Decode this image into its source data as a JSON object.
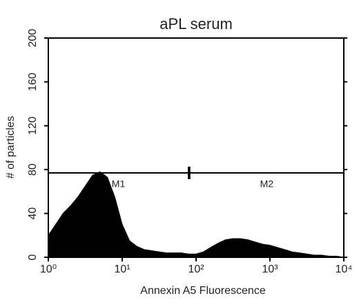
{
  "chart_data": {
    "type": "area",
    "title": "aPL serum",
    "x_label": "Annexin A5 Fluorescence",
    "y_label": "# of particles",
    "x": [
      1,
      1.26,
      1.58,
      2,
      2.51,
      3.16,
      3.98,
      5.01,
      6.31,
      7.94,
      10,
      12.6,
      15.8,
      20,
      25.1,
      31.6,
      39.8,
      50.1,
      63.1,
      79.4,
      100,
      126,
      158,
      200,
      251,
      316,
      398,
      501,
      631,
      794,
      1000,
      1259,
      1585,
      1995,
      2512,
      3162,
      3981,
      5012,
      6310,
      7943,
      10000
    ],
    "values": [
      20,
      30,
      40,
      47,
      55,
      65,
      75,
      78,
      73,
      55,
      30,
      15,
      10,
      7,
      6,
      5,
      4,
      4,
      4,
      3,
      3,
      5,
      9,
      13,
      16,
      17,
      17,
      16,
      14,
      12,
      11,
      9,
      7,
      5,
      4,
      3,
      2,
      2,
      1,
      1,
      0
    ],
    "color": "#000000",
    "xscale": "log",
    "xlim": [
      1,
      10000
    ],
    "xticks": [
      {
        "value": 1,
        "label": "10⁰"
      },
      {
        "value": 10,
        "label": "10¹"
      },
      {
        "value": 100,
        "label": "10²"
      },
      {
        "value": 1000,
        "label": "10³"
      },
      {
        "value": 10000,
        "label": "10⁴"
      }
    ],
    "ylim": [
      0,
      200
    ],
    "yticks": [
      0,
      40,
      80,
      120,
      160,
      200
    ],
    "markers": [
      {
        "name": "M1",
        "range": [
          1,
          79
        ],
        "level": 77
      },
      {
        "name": "M2",
        "range": [
          82,
          10000
        ],
        "level": 77
      }
    ]
  }
}
